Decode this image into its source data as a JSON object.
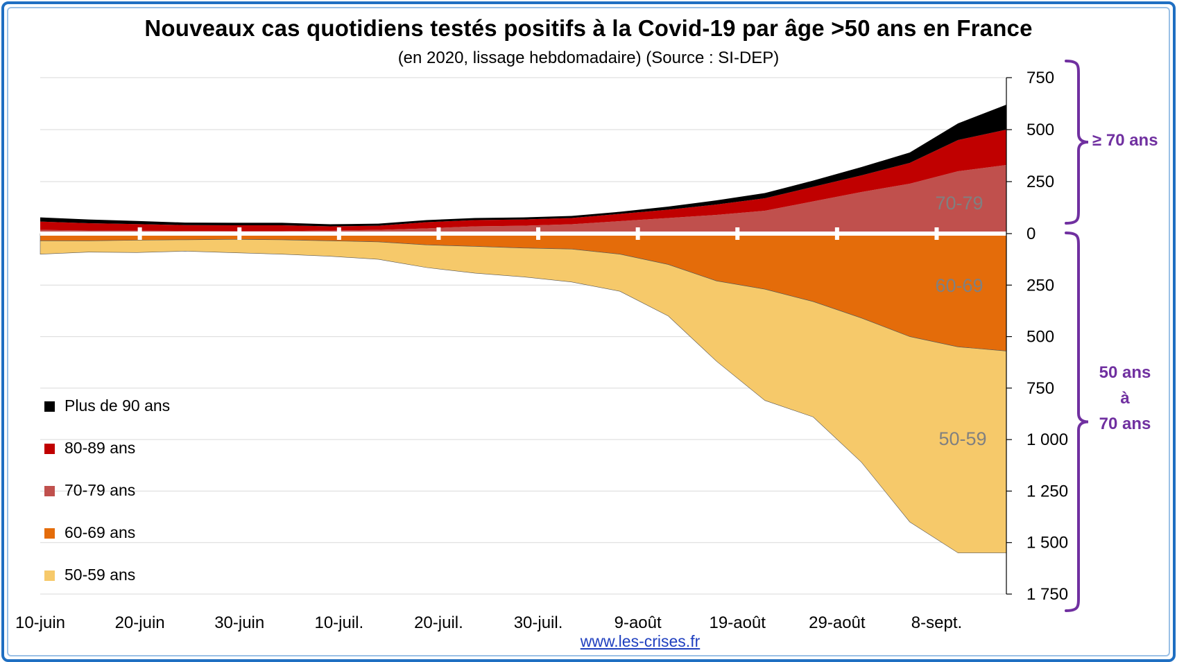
{
  "title": "Nouveaux cas quotidiens testés positifs à la Covid-19 par âge >50 ans en France",
  "subtitle": "(en 2020, lissage hebdomadaire) (Source : SI-DEP)",
  "source": "www.les-crises.fr",
  "colors": {
    "plus90": "#000000",
    "a80_89": "#c00000",
    "a70_79": "#c0504d",
    "a60_69": "#e46c0a",
    "a50_59": "#f6c96a",
    "bracket": "#7030a0",
    "grid": "#d9d9d9",
    "band_label": "#808080"
  },
  "legend": [
    {
      "label": "Plus de 90 ans",
      "color": "#000000"
    },
    {
      "label": "80-89 ans",
      "color": "#c00000"
    },
    {
      "label": "70-79 ans",
      "color": "#c0504d"
    },
    {
      "label": "60-69 ans",
      "color": "#e46c0a"
    },
    {
      "label": "50-59 ans",
      "color": "#f6c96a"
    }
  ],
  "brackets": {
    "upper": "≥ 70 ans",
    "lower": [
      "50 ans",
      "à",
      "70 ans"
    ]
  },
  "chart_data": {
    "type": "area",
    "title": "Nouveaux cas quotidiens testés positifs à la Covid-19 par âge >50 ans en France",
    "subtitle": "(en 2020, lissage hebdomadaire) (Source : SI-DEP)",
    "x_ticks": [
      "10-juin",
      "20-juin",
      "30-juin",
      "10-juil.",
      "20-juil.",
      "30-juil.",
      "9-août",
      "19-août",
      "29-août",
      "8-sept."
    ],
    "x": [
      "10-juin",
      "15-juin",
      "20-juin",
      "25-juin",
      "30-juin",
      "5-juil.",
      "10-juil.",
      "15-juil.",
      "20-juil.",
      "25-juil.",
      "30-juil.",
      "4-août",
      "9-août",
      "14-août",
      "19-août",
      "24-août",
      "29-août",
      "3-sept.",
      "8-sept.",
      "13-sept.",
      "15-sept."
    ],
    "upper_axis": {
      "ticks": [
        "0",
        "250",
        "500",
        "750"
      ],
      "range": [
        0,
        750
      ],
      "direction": "up"
    },
    "lower_axis": {
      "ticks": [
        "0",
        "250",
        "500",
        "750",
        "1 000",
        "1 250",
        "1 500",
        "1 750"
      ],
      "range": [
        0,
        1750
      ],
      "direction": "down"
    },
    "upper_series": [
      {
        "name": "70-79 ans",
        "label": "70-79",
        "values": [
          18,
          15,
          14,
          13,
          12,
          12,
          15,
          18,
          25,
          35,
          38,
          45,
          60,
          75,
          90,
          110,
          155,
          200,
          240,
          300,
          330
        ]
      },
      {
        "name": "80-89 ans",
        "values": [
          40,
          35,
          32,
          28,
          28,
          28,
          20,
          20,
          30,
          30,
          30,
          30,
          35,
          40,
          50,
          60,
          70,
          80,
          100,
          150,
          170
        ]
      },
      {
        "name": "Plus de 90 ans",
        "values": [
          20,
          18,
          15,
          12,
          12,
          12,
          10,
          10,
          10,
          10,
          10,
          10,
          10,
          15,
          20,
          25,
          30,
          40,
          50,
          80,
          120
        ]
      }
    ],
    "lower_series": [
      {
        "name": "60-69 ans",
        "label": "60-69",
        "values": [
          35,
          35,
          32,
          30,
          28,
          30,
          35,
          40,
          55,
          62,
          70,
          75,
          100,
          150,
          230,
          270,
          330,
          410,
          500,
          550,
          570
        ]
      },
      {
        "name": "50-59 ans",
        "label": "50-59",
        "values": [
          65,
          55,
          60,
          55,
          65,
          70,
          75,
          85,
          110,
          130,
          140,
          160,
          180,
          250,
          390,
          540,
          560,
          700,
          900,
          1000,
          980
        ]
      }
    ]
  }
}
